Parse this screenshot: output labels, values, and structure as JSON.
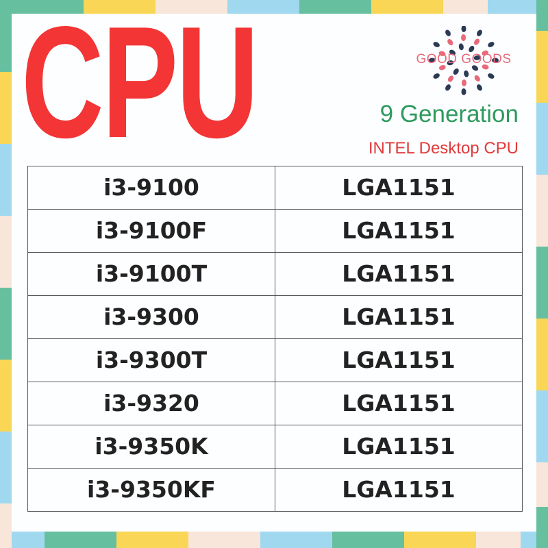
{
  "title": "CPU",
  "logo": {
    "text": "GOOD GOODS",
    "colors": {
      "dark": "#2b3a55",
      "pink": "#e86a7a"
    }
  },
  "generation": "9 Generation",
  "subtitle": "INTEL Desktop CPU",
  "colors": {
    "title": "#f33535",
    "generation": "#2e9a5e",
    "subtitle": "#e23a3a",
    "frame": [
      "#a0d8f0",
      "#66c0a0",
      "#f9d656",
      "#f8e6da"
    ]
  },
  "rows": [
    {
      "model": "i3-9100",
      "socket": "LGA1151"
    },
    {
      "model": "i3-9100F",
      "socket": "LGA1151"
    },
    {
      "model": "i3-9100T",
      "socket": "LGA1151"
    },
    {
      "model": "i3-9300",
      "socket": "LGA1151"
    },
    {
      "model": "i3-9300T",
      "socket": "LGA1151"
    },
    {
      "model": "i3-9320",
      "socket": "LGA1151"
    },
    {
      "model": "i3-9350K",
      "socket": "LGA1151"
    },
    {
      "model": "i3-9350KF",
      "socket": "LGA1151"
    }
  ]
}
